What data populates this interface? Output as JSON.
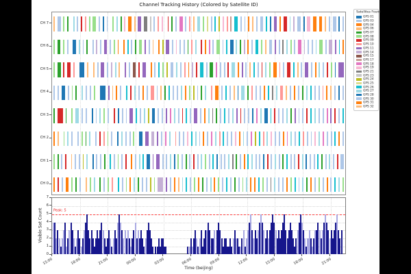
{
  "figure": {
    "title": "Channel Tracking History (Colored by Satellite ID)"
  },
  "colors": {
    "background": "#000000",
    "figure_bg": "#ffffff",
    "spine": "#808080",
    "grid": "#d9d9d9",
    "count_bar_dark": "#16168c",
    "count_bar_light": "#a9a9e2",
    "peak_line": "#ff4444",
    "peak_text": "#e82020",
    "palette": [
      "#1f77b4",
      "#aec7e8",
      "#ff7f0e",
      "#ffbb78",
      "#2ca02c",
      "#98df8a",
      "#d62728",
      "#ff9896",
      "#9467bd",
      "#c5b0d5",
      "#8c564b",
      "#c49c94",
      "#e377c2",
      "#f7b6d2",
      "#7f7f7f",
      "#c7c7c7",
      "#bcbd22",
      "#dbdb8d",
      "#17becf",
      "#9edae5",
      "#1f77b4",
      "#aec7e8",
      "#ff7f0e",
      "#ffbb78"
    ]
  },
  "legend": {
    "title": "Satellites Found",
    "items": [
      {
        "label": "GPS 01",
        "color": "#1f77b4"
      },
      {
        "label": "GPS 03",
        "color": "#aec7e8"
      },
      {
        "label": "GPS 04",
        "color": "#ff7f0e"
      },
      {
        "label": "GPS 06",
        "color": "#ffbb78"
      },
      {
        "label": "GPS 07",
        "color": "#2ca02c"
      },
      {
        "label": "GPS 08",
        "color": "#98df8a"
      },
      {
        "label": "GPS 09",
        "color": "#d62728"
      },
      {
        "label": "GPS 10",
        "color": "#ff9896"
      },
      {
        "label": "GPS 11",
        "color": "#9467bd"
      },
      {
        "label": "GPS 14",
        "color": "#c5b0d5"
      },
      {
        "label": "GPS 15",
        "color": "#8c564b"
      },
      {
        "label": "GPS 17",
        "color": "#c49c94"
      },
      {
        "label": "GPS 18",
        "color": "#e377c2"
      },
      {
        "label": "GPS 19",
        "color": "#f7b6d2"
      },
      {
        "label": "GPS 21",
        "color": "#7f7f7f"
      },
      {
        "label": "GPS 23",
        "color": "#c7c7c7"
      },
      {
        "label": "GPS 24",
        "color": "#bcbd22"
      },
      {
        "label": "GPS 25",
        "color": "#dbdb8d"
      },
      {
        "label": "GPS 26",
        "color": "#17becf"
      },
      {
        "label": "GPS 27",
        "color": "#9edae5"
      },
      {
        "label": "GPS 28",
        "color": "#1f77b4"
      },
      {
        "label": "GPS 30",
        "color": "#aec7e8"
      },
      {
        "label": "GPS 31",
        "color": "#ff7f0e"
      },
      {
        "label": "GPS 32",
        "color": "#ffbb78"
      }
    ]
  },
  "chart_data": [
    {
      "type": "event-raster",
      "title": "Channel Tracking History (Colored by Satellite ID)",
      "y_categories": [
        "CH 7",
        "CH 6",
        "CH 5",
        "CH 4",
        "CH 3",
        "CH 2",
        "CH 1",
        "CH 0"
      ],
      "encoding": {
        "empty": ".",
        "letters": "a-x = satellite index 0-23 in legend order, runs = wider tracking segments"
      },
      "rows": [
        "d.bb.f.e..t.b.g.h.f.ff.b.a.v..f.t.e.n.cc.d.ii.oo.p.b.h.n..g.e.v.mm.b.h.d.tt.f.r.b.s.q.n.h.l.ss.b.v.c.d.b.vv.s.a.ii.c.gg.t.j.bb.a.nn.cc.ww.d.b.vv.a.b",
        "f.ee.f.b..aa.t.v.e..b.j.b.ii.v.f.w..c.s.b.e.ff.i.b.d..c.q.ii.b.n.v.b.e.h.t..g.c.m.b.ff.v.s.aa.t.e.j.c.b.ss.f.d.vv.i.b.o.t.f.b.mm.j.b.v.t.ff.b.jj.i.s.c",
        "f.ee.g.gg.h..aaa.d..d.v.ii.b.j.t.d..i.v.kk.g.ii..c.b.s.f.q.vv.t.b.h.c.j.g.ss.b.ee.m.v.b.g.tt.c.i.b.d.s.v.g.t.f.cc.h.b.gg.s.d.b.ii.v.c.t.b.g.f.a.iii",
        "b.v.aa.b.f.e..t.b.v.f..aaa.i.d.c.v..s.g.t.b.c.v.hh.b.d.e.s.b.v.t.c.f.q.v.e.t..h.cc.b.s.v.d.a.tt.e.h.v.b.c.s.o.t.hh.d.v.c.b.e.t.s.b.v.h.c.d.b.a.v",
        "e.ggg.e..f.tt.b.v..a.b.t.f.v..g.a.v.b.ii.s.b.t.q.aa.b.v.i.m.t.b.g.s.v.ii.b.c.t.o.e.v.s.b.t.i.g.v.b.a.m.t.uu.s.g.v.b.t.e.i.v.b.g.s.t.b.v.m.i.g.b.s",
        "c.d..f.t.v..b.f.e.t..b.g.h.f.v..a.t.b.v.f..uu.ii.jj.i.b.m.t..h.v.b.n.s.t.b.c.v.m.t.h.s.b.v.n.c.t.b.m.q.s.h.t.n.b.v.c.m.t.b.s.h.v.b.n.t.m.b.v.s.c.b",
        "f.e.b.g..d.v.b.q.t..a.b.v.e..s.b.f.v.g..c.b.t.s.uu.i.ii.v.b.t.a.f.v.e.b.g.v.t.f.b.s.a.v.b.t.o.e.v.c.s.t.v.b.a.g.v.t.b.e.s.v.b.g.t.a.v.b.s.e.v.t.b.g.vv",
        "c.g.b.cc.f.e.b..d.f.t..e.b.f.h..s.b.f.c.t.e.b.v.q.f.jjj.i.b.w.d.t.s.b.f.w.e.b.t.c.f.b.s.v.e.b.f.t.c.w.s.f.b.o.t.v.b.c.f.s.b.t.e.w.b.f.v.c.b.s.t.f"
      ]
    },
    {
      "type": "bar",
      "ylabel": "Visible Sat Count",
      "xlabel": "Time (beijing)",
      "ylim": [
        0,
        7
      ],
      "yticks": [
        0,
        1,
        2,
        3,
        4,
        5,
        6,
        7
      ],
      "x_ticks": [
        "15:00",
        "18:00",
        "21:00",
        "00:00",
        "03:00",
        "06:00",
        "09:00",
        "12:00",
        "15:00",
        "18:00",
        "21:00"
      ],
      "grid": true,
      "legend_position": "none",
      "peak_line": {
        "y": 5,
        "label": "Peak: 5",
        "color": "#ff4444"
      },
      "counts": "44232123412343212321234532321232343212321232454323232123423232123432101121221100000000000000112123212312334322303432122112123221123123453232345432323454323234532343212345432123212334323454323234532300"
    }
  ]
}
